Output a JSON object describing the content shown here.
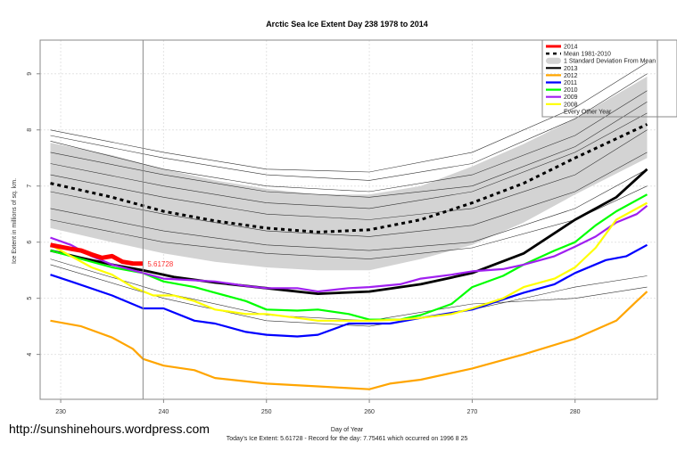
{
  "watermark": "http://sunshinehours.wordpress.com",
  "chart_data": {
    "type": "line",
    "title": "Arctic Sea Ice Extent Day 238 1978 to 2014",
    "xlabel": "Day of Year",
    "ylabel": "Ice Extent in millions of sq. km.",
    "subtitle": "Today's Ice Extent: 5.61728  - Record for the day: 7.75461 which occurred on 1996 8 25",
    "xlim": [
      228,
      288
    ],
    "ylim": [
      3.2,
      9.6
    ],
    "xticks": [
      230,
      240,
      250,
      260,
      270,
      280
    ],
    "yticks": [
      4,
      5,
      6,
      7,
      8,
      9
    ],
    "grid": true,
    "legend_position": "top-right",
    "current_day": 238,
    "current_value_label": "5.61728",
    "legend": [
      {
        "label": "2014",
        "color": "#ff0000",
        "style": "thick"
      },
      {
        "label": "Mean 1981-2010",
        "color": "#000000",
        "style": "dashed"
      },
      {
        "label": "1 Standard Deviation From Mean",
        "color": "#d3d3d3",
        "style": "band"
      },
      {
        "label": "2013",
        "color": "#000000",
        "style": "line"
      },
      {
        "label": "2012",
        "color": "#ffa500",
        "style": "line"
      },
      {
        "label": "2011",
        "color": "#0000ff",
        "style": "line"
      },
      {
        "label": "2010",
        "color": "#00ff00",
        "style": "line"
      },
      {
        "label": "2009",
        "color": "#a020f0",
        "style": "line"
      },
      {
        "label": "2008",
        "color": "#ffff00",
        "style": "line"
      },
      {
        "label": "Every Other Year",
        "color": "#000000",
        "style": "thin"
      }
    ],
    "sd_band": {
      "x": [
        229,
        235,
        240,
        245,
        250,
        255,
        260,
        265,
        270,
        275,
        280,
        287
      ],
      "upper": [
        7.77,
        7.55,
        7.3,
        7.1,
        6.95,
        6.85,
        6.85,
        7.0,
        7.35,
        7.75,
        8.2,
        8.95
      ],
      "lower": [
        6.25,
        6.0,
        5.8,
        5.65,
        5.55,
        5.5,
        5.5,
        5.7,
        5.95,
        6.35,
        6.85,
        7.5
      ]
    },
    "mean": {
      "x": [
        229,
        235,
        240,
        245,
        250,
        255,
        260,
        265,
        270,
        275,
        280,
        287
      ],
      "values": [
        7.05,
        6.8,
        6.55,
        6.38,
        6.25,
        6.18,
        6.22,
        6.4,
        6.7,
        7.05,
        7.5,
        8.1
      ]
    },
    "other_years": {
      "x": [
        229,
        240,
        250,
        260,
        270,
        280,
        287
      ],
      "series": [
        [
          8.0,
          7.6,
          7.3,
          7.25,
          7.6,
          8.4,
          9.2
        ],
        [
          7.9,
          7.5,
          7.2,
          7.1,
          7.4,
          8.2,
          9.0
        ],
        [
          7.8,
          7.3,
          7.0,
          6.9,
          7.2,
          7.9,
          8.7
        ],
        [
          7.6,
          7.2,
          6.9,
          6.8,
          7.0,
          7.7,
          8.5
        ],
        [
          7.4,
          7.0,
          6.7,
          6.6,
          6.9,
          7.6,
          8.3
        ],
        [
          7.2,
          6.8,
          6.5,
          6.4,
          6.6,
          7.2,
          8.0
        ],
        [
          6.9,
          6.5,
          6.2,
          6.1,
          6.3,
          6.9,
          7.6
        ],
        [
          6.6,
          6.2,
          5.95,
          5.85,
          6.0,
          6.6,
          7.3
        ],
        [
          6.4,
          6.0,
          5.8,
          5.7,
          5.9,
          6.4,
          7.0
        ],
        [
          5.6,
          5.0,
          4.6,
          4.5,
          4.8,
          5.2,
          5.4
        ],
        [
          5.7,
          5.1,
          4.7,
          4.6,
          4.9,
          5.0,
          5.2
        ]
      ]
    },
    "series": [
      {
        "name": "2013",
        "color": "#000000",
        "x": [
          229,
          232,
          235,
          238,
          241,
          245,
          250,
          255,
          260,
          265,
          270,
          275,
          280,
          284,
          287
        ],
        "values": [
          5.85,
          5.72,
          5.6,
          5.5,
          5.38,
          5.28,
          5.18,
          5.08,
          5.12,
          5.25,
          5.45,
          5.8,
          6.4,
          6.8,
          7.3
        ]
      },
      {
        "name": "2012",
        "color": "#ffa500",
        "x": [
          229,
          232,
          235,
          237,
          238,
          240,
          243,
          245,
          250,
          255,
          260,
          262,
          265,
          270,
          275,
          280,
          284,
          286,
          287
        ],
        "values": [
          4.6,
          4.5,
          4.3,
          4.1,
          3.92,
          3.8,
          3.72,
          3.58,
          3.48,
          3.43,
          3.38,
          3.48,
          3.55,
          3.75,
          4.0,
          4.28,
          4.6,
          4.95,
          5.12
        ]
      },
      {
        "name": "2011",
        "color": "#0000ff",
        "x": [
          229,
          231,
          235,
          238,
          240,
          243,
          245,
          248,
          250,
          253,
          255,
          258,
          260,
          262,
          265,
          270,
          272,
          275,
          278,
          280,
          283,
          285,
          287
        ],
        "values": [
          5.42,
          5.3,
          5.05,
          4.82,
          4.82,
          4.6,
          4.55,
          4.4,
          4.35,
          4.32,
          4.35,
          4.55,
          4.55,
          4.55,
          4.65,
          4.8,
          4.92,
          5.1,
          5.25,
          5.45,
          5.68,
          5.75,
          5.95
        ]
      },
      {
        "name": "2010",
        "color": "#00ff00",
        "x": [
          229,
          232,
          235,
          238,
          240,
          243,
          245,
          248,
          250,
          253,
          255,
          258,
          260,
          263,
          265,
          268,
          270,
          273,
          275,
          278,
          280,
          282,
          284,
          287
        ],
        "values": [
          5.85,
          5.7,
          5.55,
          5.45,
          5.3,
          5.2,
          5.1,
          4.95,
          4.8,
          4.78,
          4.8,
          4.72,
          4.62,
          4.62,
          4.7,
          4.9,
          5.2,
          5.4,
          5.6,
          5.85,
          6.0,
          6.3,
          6.55,
          6.85
        ]
      },
      {
        "name": "2009",
        "color": "#a020f0",
        "x": [
          229,
          231,
          233,
          235,
          238,
          240,
          243,
          245,
          248,
          250,
          253,
          255,
          258,
          260,
          263,
          265,
          268,
          270,
          273,
          275,
          278,
          280,
          282,
          284,
          286,
          287
        ],
        "values": [
          6.08,
          5.95,
          5.75,
          5.6,
          5.45,
          5.35,
          5.32,
          5.3,
          5.22,
          5.18,
          5.18,
          5.12,
          5.18,
          5.2,
          5.25,
          5.35,
          5.42,
          5.48,
          5.52,
          5.6,
          5.75,
          5.92,
          6.1,
          6.35,
          6.5,
          6.65
        ]
      },
      {
        "name": "2008",
        "color": "#ffff00",
        "x": [
          229,
          231,
          233,
          235,
          237,
          239,
          241,
          243,
          245,
          248,
          250,
          253,
          255,
          258,
          260,
          263,
          265,
          268,
          270,
          273,
          275,
          278,
          280,
          282,
          284,
          287
        ],
        "values": [
          5.95,
          5.75,
          5.55,
          5.42,
          5.2,
          5.05,
          5.05,
          4.95,
          4.8,
          4.72,
          4.72,
          4.65,
          4.6,
          4.6,
          4.6,
          4.62,
          4.65,
          4.72,
          4.82,
          5.0,
          5.2,
          5.35,
          5.55,
          5.9,
          6.4,
          6.7
        ]
      },
      {
        "name": "2014",
        "color": "#ff0000",
        "x": [
          229,
          231,
          232,
          233,
          234,
          235,
          236,
          237,
          238
        ],
        "values": [
          5.95,
          5.88,
          5.85,
          5.78,
          5.72,
          5.75,
          5.65,
          5.62,
          5.61728
        ]
      }
    ]
  }
}
